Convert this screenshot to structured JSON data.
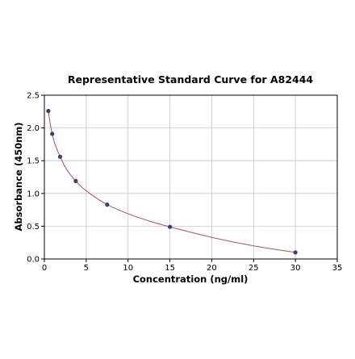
{
  "chart_data": {
    "type": "scatter",
    "title": "Representative Standard Curve for A82444",
    "xlabel": "Concentration (ng/ml)",
    "ylabel": "Absorbance (450nm)",
    "xlim": [
      0,
      35
    ],
    "ylim": [
      0,
      2.5
    ],
    "xticks": [
      0,
      5,
      10,
      15,
      20,
      25,
      30,
      35
    ],
    "yticks": [
      0.0,
      0.5,
      1.0,
      1.5,
      2.0,
      2.5
    ],
    "xtick_labels": [
      "0",
      "5",
      "10",
      "15",
      "20",
      "25",
      "30",
      "35"
    ],
    "ytick_labels": [
      "0.0",
      "0.5",
      "1.0",
      "1.5",
      "2.0",
      "2.5"
    ],
    "grid": true,
    "series": [
      {
        "x": [
          0.47,
          0.94,
          1.88,
          3.75,
          7.5,
          15,
          30
        ],
        "y": [
          2.26,
          1.91,
          1.56,
          1.19,
          0.83,
          0.49,
          0.1
        ]
      }
    ],
    "fit_curve": {
      "x": [
        0.47,
        0.7,
        0.94,
        1.3,
        1.88,
        2.7,
        3.75,
        5.0,
        7.5,
        10.0,
        12.5,
        15,
        20,
        25,
        30
      ],
      "y": [
        2.26,
        2.06,
        1.91,
        1.74,
        1.56,
        1.36,
        1.19,
        1.04,
        0.83,
        0.69,
        0.58,
        0.49,
        0.33,
        0.2,
        0.1
      ]
    },
    "colors": {
      "point": "#3d3f6b",
      "curve": "#b0506a",
      "grid": "#c8c8c8",
      "axis": "#000000"
    }
  }
}
